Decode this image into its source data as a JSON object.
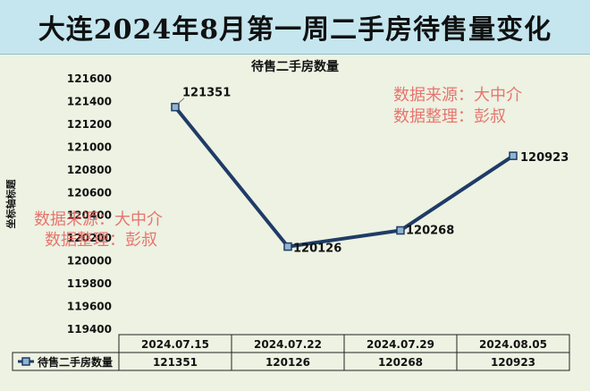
{
  "banner_title": "大连2024年8月第一周二手房待售量变化",
  "watermark": {
    "line1": "数据来源：大中介",
    "line2": "数据整理：彭叔"
  },
  "chart_data": {
    "type": "line",
    "title": "待售二手房数量",
    "ylabel": "坐标轴标题",
    "xlabel": "",
    "ylim": [
      119400,
      121600
    ],
    "ytick_step": 200,
    "categories": [
      "2024.07.15",
      "2024.07.22",
      "2024.07.29",
      "2024.08.05"
    ],
    "series": [
      {
        "name": "待售二手房数量",
        "values": [
          121351,
          120126,
          120268,
          120923
        ]
      }
    ],
    "line_color": "#1f3b67",
    "marker_color": "#8fb4cf",
    "grid": false,
    "legend": "data-table"
  }
}
